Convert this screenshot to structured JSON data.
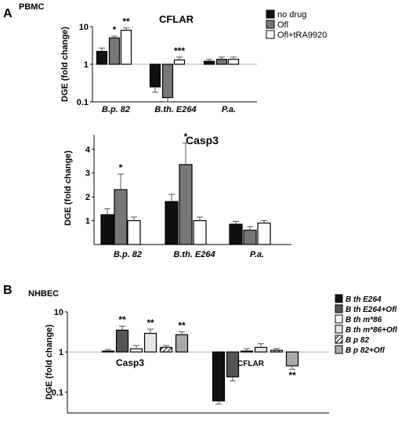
{
  "panels": {
    "a_letter": "A",
    "a_cell": "PBMC",
    "b_letter": "B",
    "b_cell": "NHBEC"
  },
  "chart_data": [
    {
      "type": "bar",
      "title": "CFLAR",
      "ylabel": "DGE (fold change)",
      "yscale": "log",
      "ylim": [
        0.1,
        10
      ],
      "yticks": [
        "0.1",
        "1",
        "10"
      ],
      "grid": false,
      "legend_position": "top-right",
      "categories": [
        "B.p. 82",
        "B.th. E264",
        "P.a."
      ],
      "series": [
        {
          "name": "no drug",
          "color": "#111111",
          "values": [
            2.2,
            0.25,
            1.2
          ],
          "err": [
            0.5,
            0.07,
            0.15
          ]
        },
        {
          "name": "Ofl",
          "color": "#777777",
          "values": [
            5.0,
            0.13,
            1.35
          ],
          "err": [
            0.6,
            0.05,
            0.2
          ]
        },
        {
          "name": "Ofl+tRA9920",
          "color": "#ffffff",
          "values": [
            8.0,
            1.3,
            1.35
          ],
          "err": [
            1.2,
            0.25,
            0.2
          ]
        }
      ],
      "significance": [
        {
          "category": 0,
          "series": 1,
          "label": "*"
        },
        {
          "category": 0,
          "series": 2,
          "label": "**"
        },
        {
          "category": 1,
          "series": 2,
          "label": "***"
        }
      ]
    },
    {
      "type": "bar",
      "title": "Casp3",
      "ylabel": "DGE (fold change)",
      "yscale": "linear",
      "ylim": [
        0,
        4.6
      ],
      "yticks": [
        "1",
        "2",
        "3",
        "4"
      ],
      "grid": false,
      "categories": [
        "B.p. 82",
        "B.th. E264",
        "P.a."
      ],
      "series": [
        {
          "name": "no drug",
          "color": "#111111",
          "values": [
            1.25,
            1.8,
            0.85
          ],
          "err": [
            0.25,
            0.3,
            0.12
          ]
        },
        {
          "name": "Ofl",
          "color": "#777777",
          "values": [
            2.3,
            3.35,
            0.6
          ],
          "err": [
            0.65,
            0.9,
            0.15
          ]
        },
        {
          "name": "Ofl+tRA9920",
          "color": "#ffffff",
          "values": [
            1.0,
            1.0,
            0.9
          ],
          "err": [
            0.15,
            0.15,
            0.1
          ]
        }
      ],
      "significance": [
        {
          "category": 0,
          "series": 1,
          "label": "*"
        },
        {
          "category": 1,
          "series": 1,
          "label": "*"
        }
      ]
    },
    {
      "type": "bar",
      "title": "",
      "ylabel": "DGE (fold change)",
      "yscale": "log",
      "ylim": [
        0.03,
        10
      ],
      "yticks": [
        "0.1",
        "1",
        "10"
      ],
      "grid": false,
      "legend_position": "right",
      "categories": [
        "Casp3",
        "CFLAR"
      ],
      "series": [
        {
          "name_parts": [
            "B th",
            " E264"
          ],
          "color": "#111111",
          "pattern": "solid",
          "values": [
            1.05,
            0.06
          ],
          "err": [
            0.1,
            0.01
          ]
        },
        {
          "name_parts": [
            "B th",
            " E264+Ofl"
          ],
          "color": "#555555",
          "pattern": "solid",
          "values": [
            3.5,
            0.24
          ],
          "err": [
            0.9,
            0.05
          ]
        },
        {
          "name_parts": [
            "B th",
            " m*86"
          ],
          "color": "#ffffff",
          "pattern": "solid",
          "values": [
            1.2,
            1.05
          ],
          "err": [
            0.25,
            0.15
          ]
        },
        {
          "name_parts": [
            "B th",
            " m*86+Ofl"
          ],
          "color": "#e6e6e6",
          "pattern": "solid",
          "values": [
            2.9,
            1.3
          ],
          "err": [
            0.8,
            0.3
          ]
        },
        {
          "name_parts": [
            "B p",
            " 82"
          ],
          "color": "#ffffff",
          "pattern": "hatch",
          "values": [
            1.3,
            1.1
          ],
          "err": [
            0.15,
            0.12
          ]
        },
        {
          "name_parts": [
            "B p",
            " 82+Ofl"
          ],
          "color": "#a9a9a9",
          "pattern": "solid",
          "values": [
            2.7,
            0.45
          ],
          "err": [
            0.5,
            0.08
          ]
        }
      ],
      "significance": [
        {
          "category": 0,
          "series": 1,
          "label": "**"
        },
        {
          "category": 0,
          "series": 3,
          "label": "**"
        },
        {
          "category": 0,
          "series": 5,
          "label": "**"
        },
        {
          "category": 1,
          "series": 5,
          "label": "**"
        }
      ]
    }
  ]
}
